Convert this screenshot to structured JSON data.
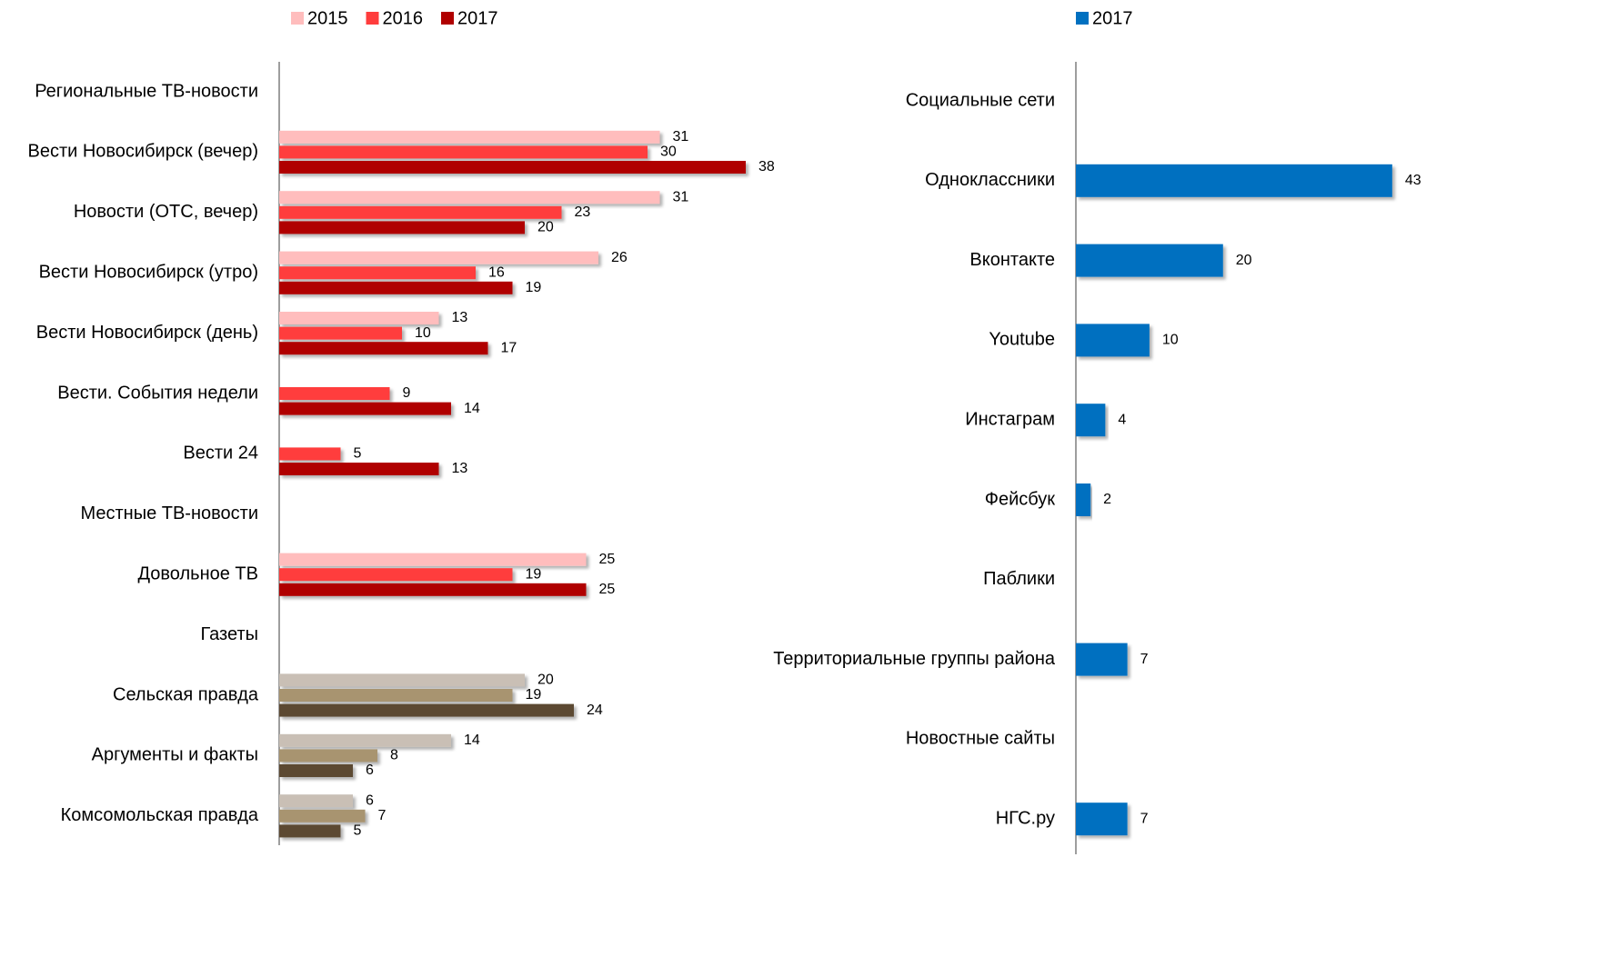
{
  "chart_data": [
    {
      "type": "bar",
      "orientation": "horizontal",
      "categories": [
        "Региональные ТВ-новости",
        "Вести Новосибирск (вечер)",
        "Новости (ОТС, вечер)",
        "Вести Новосибирск (утро)",
        "Вести Новосибирск (день)",
        "Вести. События недели",
        "Вести 24",
        "Местные ТВ-новости",
        "Довольное ТВ",
        "Газеты",
        "Сельская правда",
        "Аргументы и факты",
        "Комсомольская правда"
      ],
      "series": [
        {
          "name": "2015",
          "color": "#ffbdbd",
          "values": [
            null,
            31,
            31,
            26,
            13,
            null,
            null,
            null,
            25,
            null,
            20,
            14,
            6
          ],
          "colors": [
            "#ffbdbd",
            "#ffbdbd",
            "#ffbdbd",
            "#ffbdbd",
            "#ffbdbd",
            "#ffbdbd",
            "#ffbdbd",
            "#ffbdbd",
            "#ffbdbd",
            "#ffbdbd",
            "#c9bfb5",
            "#c9bfb5",
            "#c9bfb5"
          ]
        },
        {
          "name": "2016",
          "color": "#ff3c3c",
          "values": [
            null,
            30,
            23,
            16,
            10,
            9,
            5,
            null,
            19,
            null,
            19,
            8,
            7
          ],
          "colors": [
            "#ff3c3c",
            "#ff3c3c",
            "#ff3c3c",
            "#ff3c3c",
            "#ff3c3c",
            "#ff3c3c",
            "#ff3c3c",
            "#ff3c3c",
            "#ff3c3c",
            "#ff3c3c",
            "#a8946f",
            "#a8946f",
            "#a8946f"
          ]
        },
        {
          "name": "2017",
          "color": "#b00000",
          "values": [
            null,
            38,
            20,
            19,
            17,
            14,
            13,
            null,
            25,
            null,
            24,
            6,
            5
          ],
          "colors": [
            "#b00000",
            "#b00000",
            "#b00000",
            "#b00000",
            "#b00000",
            "#b00000",
            "#b00000",
            "#b00000",
            "#b00000",
            "#b00000",
            "#5c4a32",
            "#5c4a32",
            "#5c4a32"
          ]
        }
      ],
      "xlim": [
        0,
        45
      ],
      "legend": "top"
    },
    {
      "type": "bar",
      "orientation": "horizontal",
      "categories": [
        "Социальные сети",
        "Одноклассники",
        "Вконтакте",
        "Youtube",
        "Инстаграм",
        "Фейсбук",
        "Паблики",
        "Территориальные группы района",
        "Новостные сайты",
        "НГС.ру"
      ],
      "series": [
        {
          "name": "2017",
          "color": "#0070c0",
          "values": [
            null,
            43,
            20,
            10,
            4,
            2,
            null,
            7,
            null,
            7
          ]
        }
      ],
      "xlim": [
        0,
        45
      ],
      "legend": "top"
    }
  ]
}
